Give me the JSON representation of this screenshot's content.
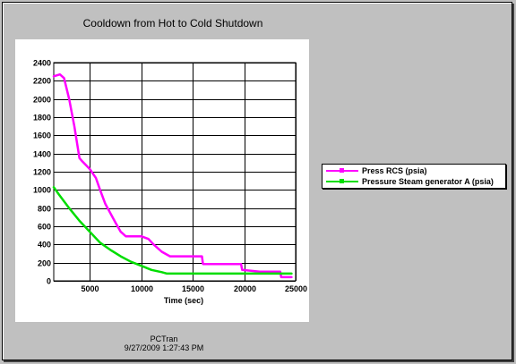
{
  "footer": {
    "app_name": "PCTran",
    "timestamp": "9/27/2009 1:27:43 PM"
  },
  "colors": {
    "background": "#c0c0c0",
    "plot_background": "#ffffff",
    "grid": "#000000"
  },
  "chart_data": {
    "type": "line",
    "title": "Cooldown from Hot to Cold Shutdown",
    "xlabel": "Time (sec)",
    "ylabel": "",
    "xlim": [
      1500,
      25000
    ],
    "ylim": [
      0,
      2400
    ],
    "x_ticks": [
      5000,
      10000,
      15000,
      20000,
      25000
    ],
    "y_ticks": [
      0,
      200,
      400,
      600,
      800,
      1000,
      1200,
      1400,
      1600,
      1800,
      2000,
      2200,
      2400
    ],
    "grid": true,
    "legend_position": "right",
    "series": [
      {
        "name": "Press RCS (psia)",
        "color": "#ff00ff",
        "points": [
          [
            1500,
            2250
          ],
          [
            2100,
            2270
          ],
          [
            2500,
            2230
          ],
          [
            3000,
            2000
          ],
          [
            3500,
            1700
          ],
          [
            4000,
            1350
          ],
          [
            4300,
            1310
          ],
          [
            5000,
            1230
          ],
          [
            5600,
            1130
          ],
          [
            6000,
            1000
          ],
          [
            6500,
            850
          ],
          [
            7500,
            640
          ],
          [
            8000,
            540
          ],
          [
            8500,
            490
          ],
          [
            10000,
            490
          ],
          [
            10700,
            460
          ],
          [
            11200,
            400
          ],
          [
            12000,
            320
          ],
          [
            12800,
            270
          ],
          [
            13500,
            270
          ],
          [
            15900,
            270
          ],
          [
            16000,
            185
          ],
          [
            19700,
            185
          ],
          [
            19800,
            120
          ],
          [
            21500,
            100
          ],
          [
            23500,
            100
          ],
          [
            23600,
            40
          ],
          [
            24600,
            40
          ]
        ]
      },
      {
        "name": "Pressure Steam generator A (psia)",
        "color": "#00dd00",
        "points": [
          [
            1500,
            1030
          ],
          [
            2000,
            950
          ],
          [
            3000,
            800
          ],
          [
            4000,
            660
          ],
          [
            5000,
            540
          ],
          [
            6000,
            420
          ],
          [
            7000,
            340
          ],
          [
            8000,
            270
          ],
          [
            9000,
            210
          ],
          [
            10000,
            165
          ],
          [
            11000,
            120
          ],
          [
            12000,
            95
          ],
          [
            12500,
            80
          ],
          [
            15000,
            80
          ],
          [
            20000,
            80
          ],
          [
            23500,
            80
          ],
          [
            24600,
            80
          ]
        ]
      }
    ]
  }
}
